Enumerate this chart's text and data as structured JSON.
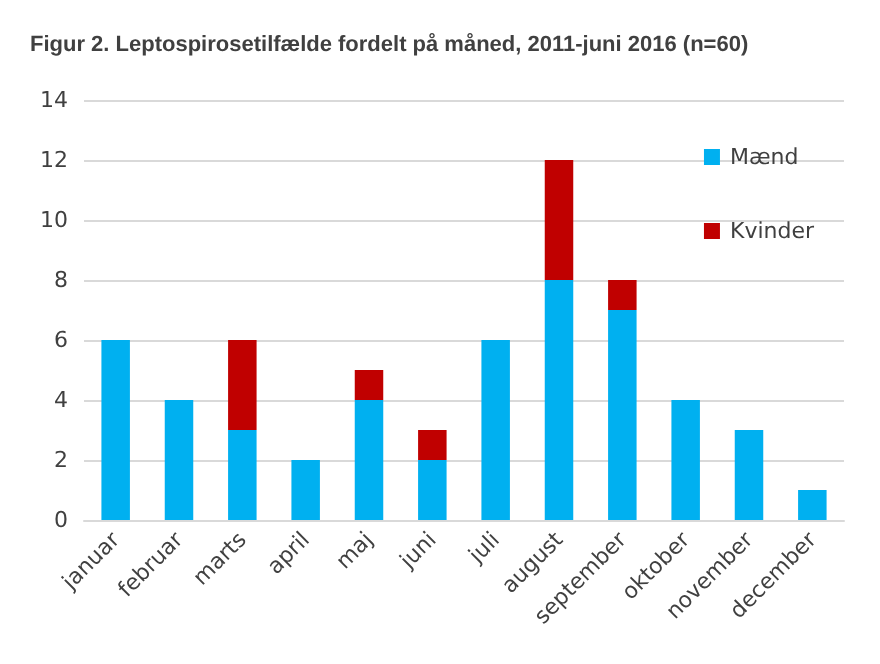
{
  "chart_data": {
    "type": "bar",
    "title": "Figur 2. Leptospirosetilfælde fordelt på måned, 2011-juni 2016 (n=60)",
    "categories": [
      "januar",
      "februar",
      "marts",
      "april",
      "maj",
      "juni",
      "juli",
      "august",
      "september",
      "oktober",
      "november",
      "december"
    ],
    "stacked": true,
    "series": [
      {
        "name": "Mænd",
        "color": "#00b0f0",
        "values": [
          6,
          4,
          3,
          2,
          4,
          2,
          6,
          8,
          7,
          4,
          3,
          1
        ]
      },
      {
        "name": "Kvinder",
        "color": "#c00000",
        "values": [
          0,
          0,
          3,
          0,
          1,
          1,
          0,
          4,
          1,
          0,
          0,
          0
        ]
      }
    ],
    "ylim": [
      0,
      14
    ],
    "yticks": [
      0,
      2,
      4,
      6,
      8,
      10,
      12,
      14
    ],
    "grid": "y",
    "legend": "top right"
  }
}
